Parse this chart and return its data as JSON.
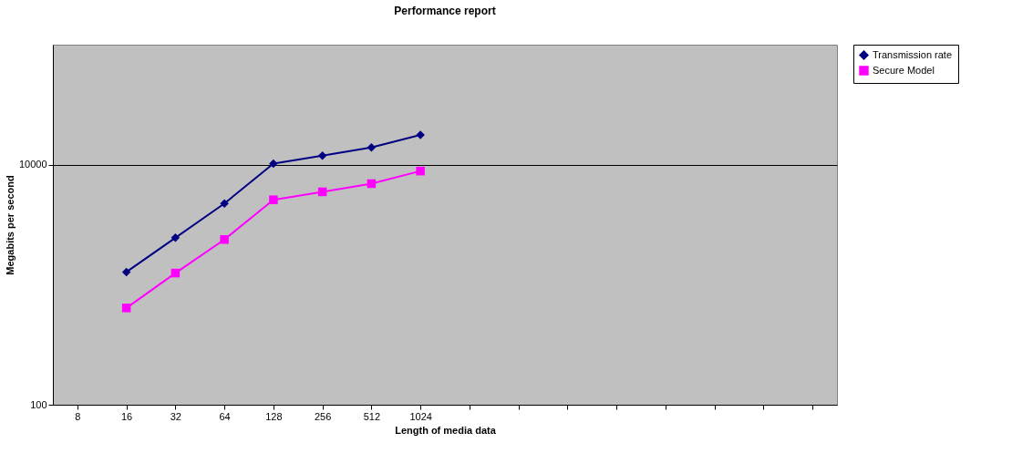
{
  "chart_data": {
    "type": "line",
    "title": "Performance report",
    "xlabel": "Length of media data",
    "ylabel": "Megabits per second",
    "categories": [
      "8",
      "16",
      "32",
      "64",
      "128",
      "256",
      "512",
      "1024",
      null,
      null,
      null,
      null,
      null,
      null,
      null,
      null
    ],
    "series": [
      {
        "name": "Transmission rate",
        "color": "#000080",
        "marker": "diamond",
        "values": [
          null,
          1275,
          2460,
          4750,
          10200,
          11900,
          13900,
          17700,
          null,
          null,
          null,
          null,
          null,
          null,
          null,
          null
        ]
      },
      {
        "name": "Secure Model",
        "color": "#ff00ff",
        "marker": "square",
        "values": [
          null,
          640,
          1250,
          2380,
          5100,
          5940,
          6950,
          8850,
          null,
          null,
          null,
          null,
          null,
          null,
          null,
          null
        ]
      }
    ],
    "log": "y",
    "ylim": [
      100,
      100000
    ],
    "yticks": [
      100,
      10000
    ],
    "grid": "y",
    "legend": "right",
    "line_style": "solid"
  }
}
